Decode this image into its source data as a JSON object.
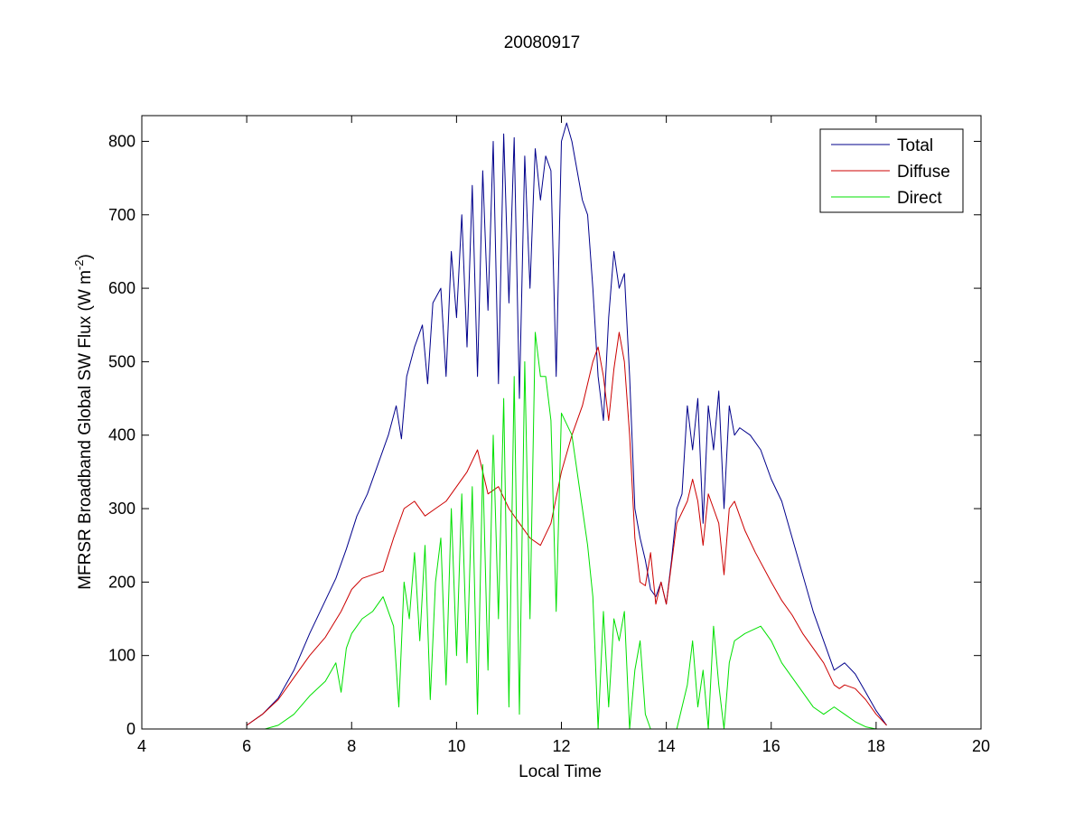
{
  "chart_data": {
    "type": "line",
    "title": "20080917",
    "xlabel": "Local Time",
    "ylabel_main": "MFRSR Broadband Global SW Flux (W m",
    "ylabel_sup": "-2",
    "ylabel_close": ")",
    "xlim": [
      4,
      20
    ],
    "ylim": [
      0,
      835
    ],
    "xticks": [
      4,
      6,
      8,
      10,
      12,
      14,
      16,
      18,
      20
    ],
    "yticks": [
      0,
      100,
      200,
      300,
      400,
      500,
      600,
      700,
      800
    ],
    "grid": false,
    "legend_position": "top-right",
    "series": [
      {
        "name": "Total",
        "color": "#00008b",
        "points": [
          [
            6.0,
            5
          ],
          [
            6.3,
            20
          ],
          [
            6.6,
            42
          ],
          [
            6.9,
            80
          ],
          [
            7.2,
            130
          ],
          [
            7.5,
            175
          ],
          [
            7.7,
            205
          ],
          [
            7.9,
            245
          ],
          [
            8.1,
            290
          ],
          [
            8.3,
            320
          ],
          [
            8.5,
            360
          ],
          [
            8.7,
            400
          ],
          [
            8.85,
            440
          ],
          [
            8.95,
            395
          ],
          [
            9.05,
            480
          ],
          [
            9.2,
            520
          ],
          [
            9.35,
            550
          ],
          [
            9.45,
            470
          ],
          [
            9.55,
            580
          ],
          [
            9.7,
            600
          ],
          [
            9.8,
            480
          ],
          [
            9.9,
            650
          ],
          [
            10.0,
            560
          ],
          [
            10.1,
            700
          ],
          [
            10.2,
            520
          ],
          [
            10.3,
            740
          ],
          [
            10.4,
            480
          ],
          [
            10.5,
            760
          ],
          [
            10.6,
            570
          ],
          [
            10.7,
            800
          ],
          [
            10.8,
            470
          ],
          [
            10.9,
            810
          ],
          [
            11.0,
            580
          ],
          [
            11.1,
            805
          ],
          [
            11.2,
            450
          ],
          [
            11.3,
            780
          ],
          [
            11.4,
            600
          ],
          [
            11.5,
            790
          ],
          [
            11.6,
            720
          ],
          [
            11.7,
            780
          ],
          [
            11.8,
            760
          ],
          [
            11.9,
            480
          ],
          [
            12.0,
            800
          ],
          [
            12.1,
            825
          ],
          [
            12.2,
            800
          ],
          [
            12.3,
            760
          ],
          [
            12.4,
            720
          ],
          [
            12.5,
            700
          ],
          [
            12.6,
            600
          ],
          [
            12.7,
            480
          ],
          [
            12.8,
            420
          ],
          [
            12.9,
            560
          ],
          [
            13.0,
            650
          ],
          [
            13.1,
            600
          ],
          [
            13.2,
            620
          ],
          [
            13.3,
            480
          ],
          [
            13.4,
            300
          ],
          [
            13.5,
            260
          ],
          [
            13.6,
            230
          ],
          [
            13.7,
            190
          ],
          [
            13.8,
            180
          ],
          [
            13.9,
            200
          ],
          [
            14.0,
            170
          ],
          [
            14.1,
            230
          ],
          [
            14.2,
            300
          ],
          [
            14.3,
            320
          ],
          [
            14.4,
            440
          ],
          [
            14.5,
            380
          ],
          [
            14.6,
            450
          ],
          [
            14.7,
            280
          ],
          [
            14.8,
            440
          ],
          [
            14.9,
            380
          ],
          [
            15.0,
            460
          ],
          [
            15.1,
            300
          ],
          [
            15.2,
            440
          ],
          [
            15.3,
            400
          ],
          [
            15.4,
            410
          ],
          [
            15.6,
            400
          ],
          [
            15.8,
            380
          ],
          [
            16.0,
            340
          ],
          [
            16.2,
            310
          ],
          [
            16.4,
            260
          ],
          [
            16.6,
            210
          ],
          [
            16.8,
            160
          ],
          [
            17.0,
            120
          ],
          [
            17.2,
            80
          ],
          [
            17.4,
            90
          ],
          [
            17.6,
            75
          ],
          [
            17.8,
            50
          ],
          [
            18.0,
            25
          ],
          [
            18.2,
            5
          ]
        ]
      },
      {
        "name": "Diffuse",
        "color": "#cc0000",
        "points": [
          [
            6.0,
            5
          ],
          [
            6.3,
            20
          ],
          [
            6.6,
            40
          ],
          [
            6.9,
            70
          ],
          [
            7.2,
            100
          ],
          [
            7.5,
            125
          ],
          [
            7.8,
            160
          ],
          [
            8.0,
            190
          ],
          [
            8.2,
            205
          ],
          [
            8.4,
            210
          ],
          [
            8.6,
            215
          ],
          [
            8.8,
            260
          ],
          [
            9.0,
            300
          ],
          [
            9.2,
            310
          ],
          [
            9.4,
            290
          ],
          [
            9.6,
            300
          ],
          [
            9.8,
            310
          ],
          [
            10.0,
            330
          ],
          [
            10.2,
            350
          ],
          [
            10.4,
            380
          ],
          [
            10.6,
            320
          ],
          [
            10.8,
            330
          ],
          [
            11.0,
            300
          ],
          [
            11.2,
            280
          ],
          [
            11.4,
            260
          ],
          [
            11.6,
            250
          ],
          [
            11.8,
            280
          ],
          [
            12.0,
            350
          ],
          [
            12.2,
            400
          ],
          [
            12.4,
            440
          ],
          [
            12.6,
            500
          ],
          [
            12.7,
            520
          ],
          [
            12.8,
            480
          ],
          [
            12.9,
            420
          ],
          [
            13.0,
            490
          ],
          [
            13.1,
            540
          ],
          [
            13.2,
            500
          ],
          [
            13.3,
            400
          ],
          [
            13.4,
            260
          ],
          [
            13.5,
            200
          ],
          [
            13.6,
            195
          ],
          [
            13.7,
            240
          ],
          [
            13.8,
            170
          ],
          [
            13.9,
            200
          ],
          [
            14.0,
            170
          ],
          [
            14.2,
            280
          ],
          [
            14.4,
            310
          ],
          [
            14.5,
            340
          ],
          [
            14.6,
            310
          ],
          [
            14.7,
            250
          ],
          [
            14.8,
            320
          ],
          [
            14.9,
            300
          ],
          [
            15.0,
            280
          ],
          [
            15.1,
            210
          ],
          [
            15.2,
            300
          ],
          [
            15.3,
            310
          ],
          [
            15.5,
            270
          ],
          [
            15.7,
            240
          ],
          [
            16.0,
            200
          ],
          [
            16.2,
            175
          ],
          [
            16.4,
            155
          ],
          [
            16.6,
            130
          ],
          [
            16.8,
            110
          ],
          [
            17.0,
            90
          ],
          [
            17.2,
            60
          ],
          [
            17.3,
            55
          ],
          [
            17.4,
            60
          ],
          [
            17.6,
            55
          ],
          [
            17.8,
            40
          ],
          [
            18.0,
            20
          ],
          [
            18.2,
            5
          ]
        ]
      },
      {
        "name": "Direct",
        "color": "#00e000",
        "points": [
          [
            6.35,
            0
          ],
          [
            6.6,
            5
          ],
          [
            6.9,
            20
          ],
          [
            7.2,
            45
          ],
          [
            7.5,
            65
          ],
          [
            7.7,
            90
          ],
          [
            7.8,
            50
          ],
          [
            7.9,
            110
          ],
          [
            8.0,
            130
          ],
          [
            8.2,
            150
          ],
          [
            8.4,
            160
          ],
          [
            8.6,
            180
          ],
          [
            8.8,
            140
          ],
          [
            8.9,
            30
          ],
          [
            9.0,
            200
          ],
          [
            9.1,
            150
          ],
          [
            9.2,
            240
          ],
          [
            9.3,
            120
          ],
          [
            9.4,
            250
          ],
          [
            9.5,
            40
          ],
          [
            9.6,
            200
          ],
          [
            9.7,
            260
          ],
          [
            9.8,
            60
          ],
          [
            9.9,
            300
          ],
          [
            10.0,
            100
          ],
          [
            10.1,
            320
          ],
          [
            10.2,
            90
          ],
          [
            10.3,
            330
          ],
          [
            10.4,
            20
          ],
          [
            10.5,
            360
          ],
          [
            10.6,
            80
          ],
          [
            10.7,
            400
          ],
          [
            10.8,
            150
          ],
          [
            10.9,
            450
          ],
          [
            11.0,
            30
          ],
          [
            11.1,
            480
          ],
          [
            11.2,
            20
          ],
          [
            11.3,
            500
          ],
          [
            11.4,
            150
          ],
          [
            11.5,
            540
          ],
          [
            11.6,
            480
          ],
          [
            11.7,
            480
          ],
          [
            11.8,
            420
          ],
          [
            11.9,
            160
          ],
          [
            12.0,
            430
          ],
          [
            12.2,
            400
          ],
          [
            12.4,
            300
          ],
          [
            12.5,
            250
          ],
          [
            12.6,
            180
          ],
          [
            12.7,
            0
          ],
          [
            12.8,
            160
          ],
          [
            12.9,
            30
          ],
          [
            13.0,
            150
          ],
          [
            13.1,
            120
          ],
          [
            13.2,
            160
          ],
          [
            13.3,
            0
          ],
          [
            13.4,
            80
          ],
          [
            13.5,
            120
          ],
          [
            13.6,
            20
          ],
          [
            13.7,
            0
          ],
          [
            13.8,
            0
          ],
          [
            14.0,
            0
          ],
          [
            14.2,
            0
          ],
          [
            14.4,
            60
          ],
          [
            14.5,
            120
          ],
          [
            14.6,
            30
          ],
          [
            14.7,
            80
          ],
          [
            14.8,
            0
          ],
          [
            14.9,
            140
          ],
          [
            15.0,
            60
          ],
          [
            15.1,
            0
          ],
          [
            15.2,
            90
          ],
          [
            15.3,
            120
          ],
          [
            15.5,
            130
          ],
          [
            15.8,
            140
          ],
          [
            16.0,
            120
          ],
          [
            16.2,
            90
          ],
          [
            16.4,
            70
          ],
          [
            16.6,
            50
          ],
          [
            16.8,
            30
          ],
          [
            17.0,
            20
          ],
          [
            17.2,
            30
          ],
          [
            17.4,
            20
          ],
          [
            17.6,
            10
          ],
          [
            17.8,
            3
          ],
          [
            18.0,
            0
          ]
        ]
      }
    ]
  }
}
